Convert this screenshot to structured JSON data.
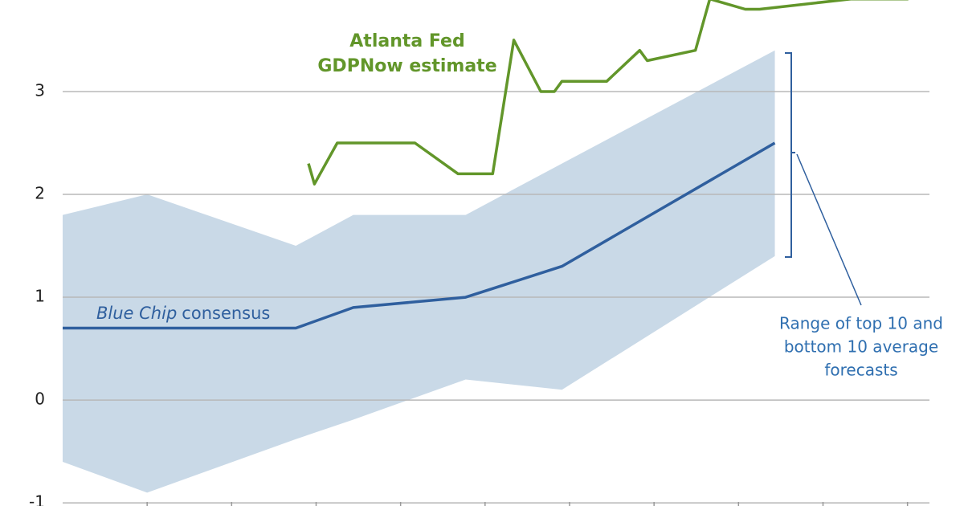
{
  "chart_data": {
    "type": "line",
    "xlim": [
      0,
      10.26
    ],
    "ylim": [
      -1.03,
      3.89
    ],
    "xticks": [
      1,
      2,
      3,
      4,
      5,
      6,
      7,
      8,
      9,
      10
    ],
    "yticks": [
      -1,
      0,
      1,
      2,
      3
    ],
    "grid": true,
    "band": {
      "color": "#c9d9e7",
      "x": [
        0,
        1,
        2.76,
        3.44,
        4.77,
        5.91,
        8.43
      ],
      "upper": [
        1.8,
        2.0,
        1.5,
        1.8,
        1.8,
        2.3,
        3.4
      ],
      "lower": [
        -0.6,
        -0.9,
        -0.38,
        -0.19,
        0.2,
        0.1,
        1.4
      ],
      "label_lines": [
        "Range of top 10 and",
        "bottom 10 average",
        "forecasts"
      ]
    },
    "series": [
      {
        "color": "#2f5f9e",
        "label_italic": "Blue Chip",
        "label_rest": "consensus",
        "x": [
          0,
          2.76,
          3.44,
          4.77,
          5.91,
          8.43
        ],
        "values": [
          0.7,
          0.7,
          0.9,
          1.0,
          1.3,
          2.5
        ]
      },
      {
        "color": "#62962a",
        "label_lines": [
          "Atlanta Fed",
          "GDPNow estimate"
        ],
        "x": [
          2.91,
          2.98,
          3.25,
          4.17,
          4.68,
          5.09,
          5.34,
          5.66,
          5.82,
          5.91,
          6.44,
          6.83,
          6.92,
          7.49,
          7.66,
          8.08,
          8.25,
          9.33,
          10.01
        ],
        "values": [
          2.3,
          2.1,
          2.5,
          2.5,
          2.2,
          2.2,
          3.5,
          3.0,
          3.0,
          3.1,
          3.1,
          3.4,
          3.3,
          3.4,
          3.9,
          3.8,
          3.8,
          3.9,
          3.9
        ]
      }
    ]
  }
}
